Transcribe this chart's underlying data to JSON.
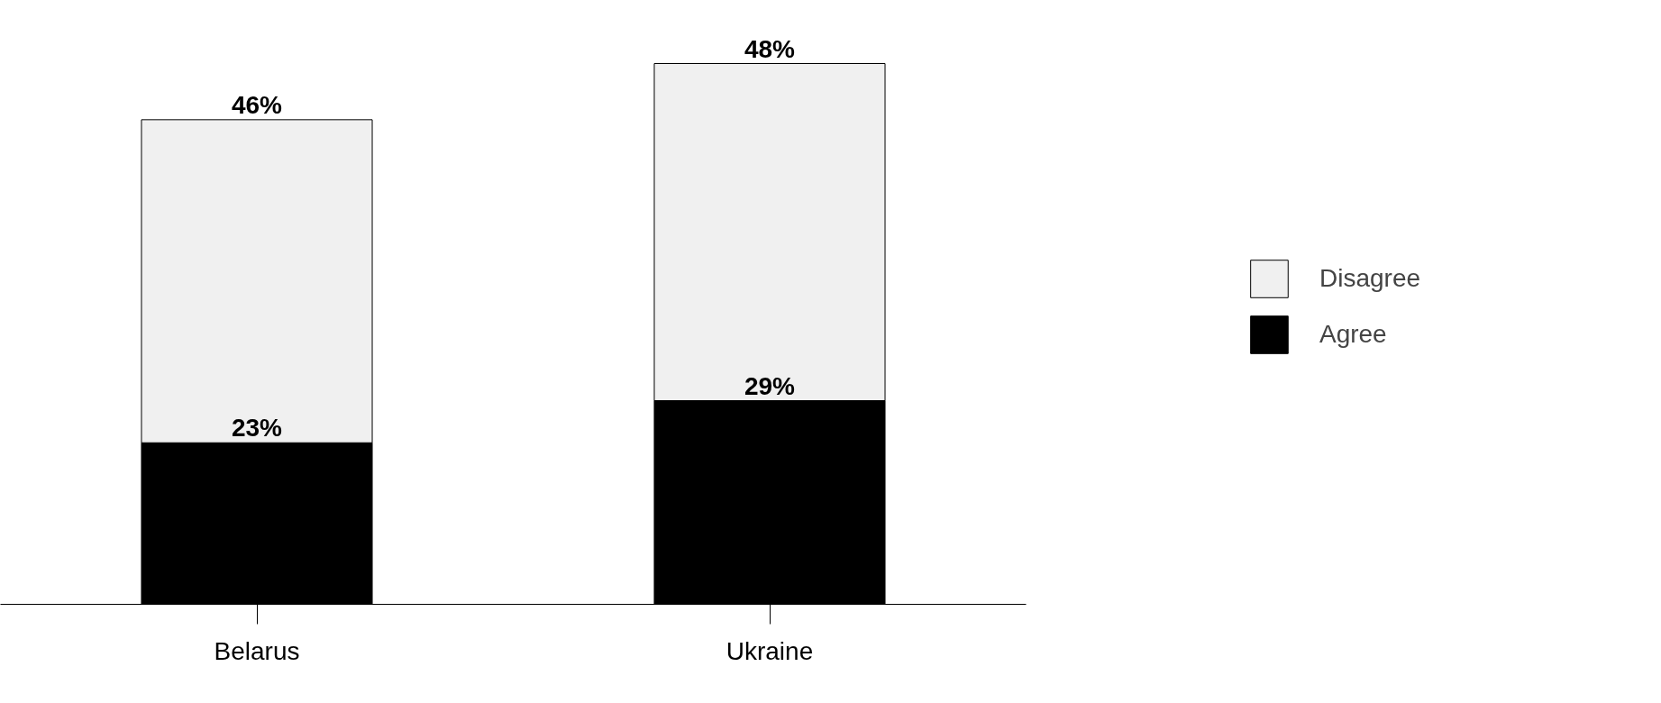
{
  "chart_data": {
    "type": "bar",
    "stacked": true,
    "categories": [
      "Belarus",
      "Ukraine"
    ],
    "series": [
      {
        "name": "Agree",
        "color": "#000000",
        "values": [
          23,
          29
        ],
        "value_labels": [
          "23%",
          "29%"
        ]
      },
      {
        "name": "Disagree",
        "color": "#f0f0f0",
        "values": [
          46,
          48
        ],
        "value_labels": [
          "46%",
          "48%"
        ]
      }
    ],
    "legend": "right"
  }
}
